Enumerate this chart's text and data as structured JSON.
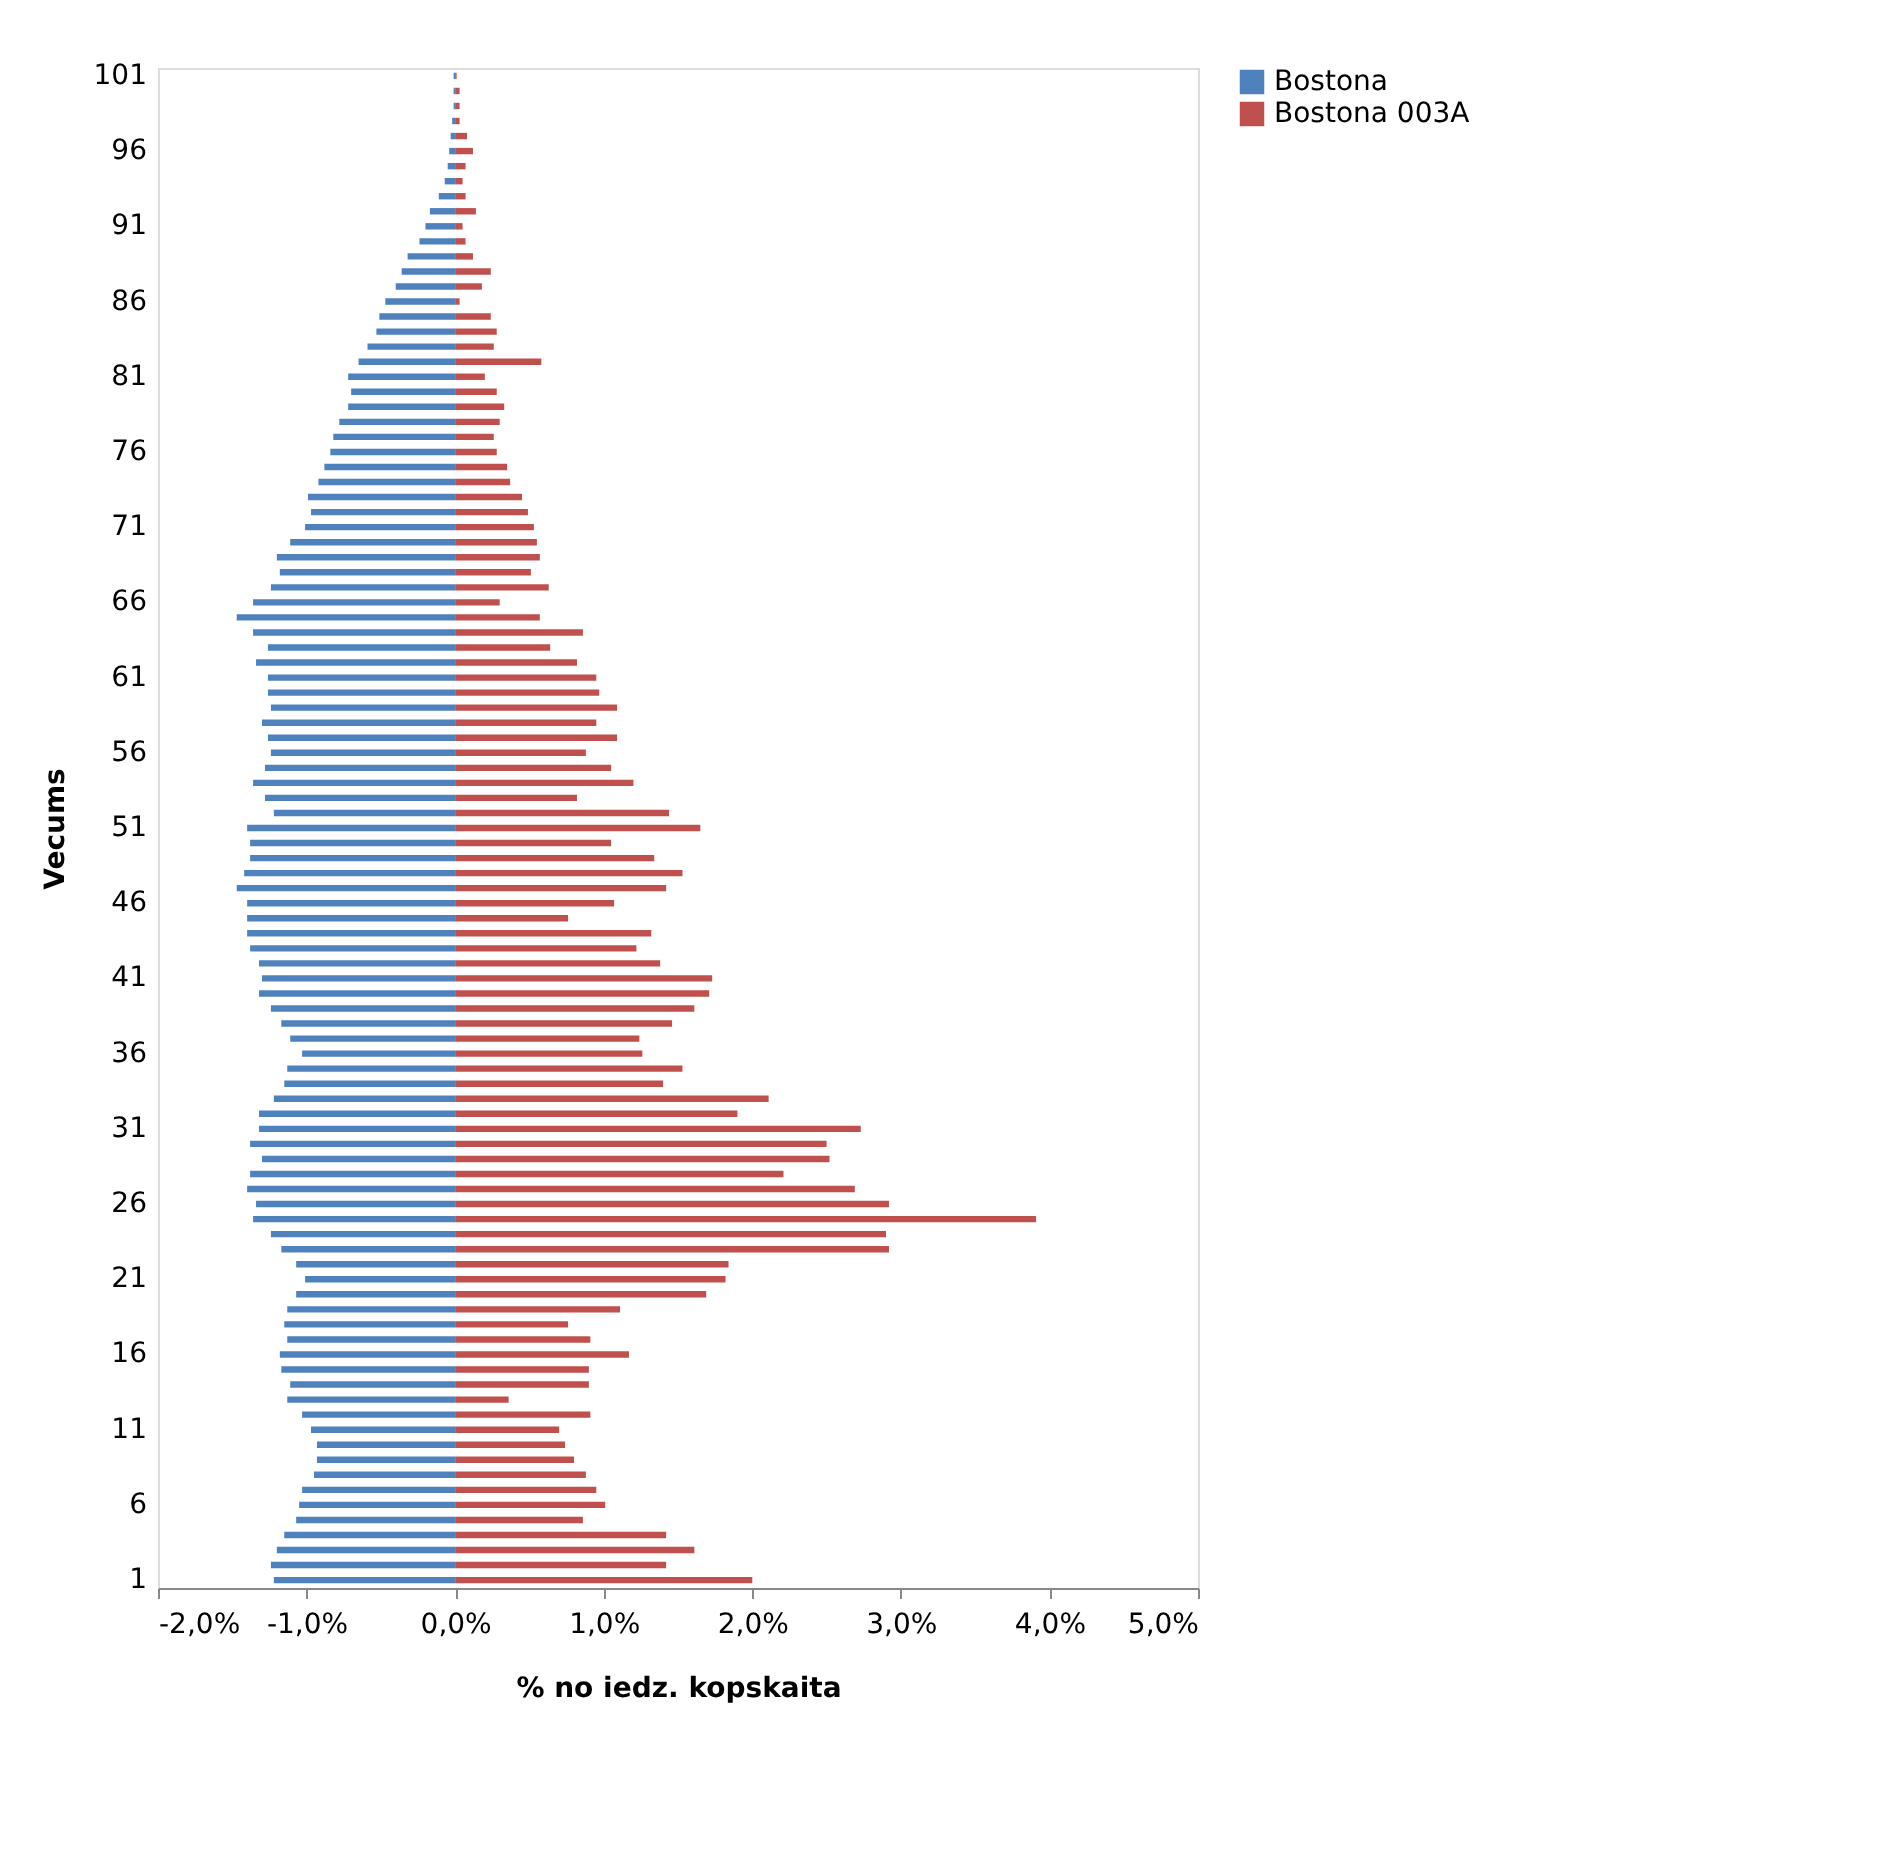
{
  "chart_data": {
    "type": "bar",
    "orientation": "horizontal",
    "xlabel": "% no iedz. kopskaita",
    "ylabel": "Vecums",
    "categories": [
      "101",
      null,
      null,
      null,
      null,
      "96",
      null,
      null,
      null,
      null,
      "91",
      null,
      null,
      null,
      null,
      "86",
      null,
      null,
      null,
      null,
      "81",
      null,
      null,
      null,
      null,
      "76",
      null,
      null,
      null,
      null,
      "71",
      null,
      null,
      null,
      null,
      "66",
      null,
      null,
      null,
      null,
      "61",
      null,
      null,
      null,
      null,
      "56",
      null,
      null,
      null,
      null,
      "51",
      null,
      null,
      null,
      null,
      "46",
      null,
      null,
      null,
      null,
      "41",
      null,
      null,
      null,
      null,
      "36",
      null,
      null,
      null,
      null,
      "31",
      null,
      null,
      null,
      null,
      "26",
      null,
      null,
      null,
      null,
      "21",
      null,
      null,
      null,
      null,
      "16",
      null,
      null,
      null,
      null,
      "11",
      null,
      null,
      null,
      null,
      "6",
      null,
      null,
      null,
      null,
      "1"
    ],
    "series": [
      {
        "name": "Bostona",
        "color": "#4f81bd",
        "values": [
          -0.01,
          -0.01,
          -0.01,
          -0.02,
          -0.03,
          -0.04,
          -0.05,
          -0.07,
          -0.11,
          -0.17,
          -0.2,
          -0.24,
          -0.32,
          -0.36,
          -0.4,
          -0.47,
          -0.51,
          -0.53,
          -0.59,
          -0.65,
          -0.72,
          -0.7,
          -0.72,
          -0.78,
          -0.82,
          -0.84,
          -0.88,
          -0.92,
          -0.99,
          -0.97,
          -1.01,
          -1.11,
          -1.2,
          -1.18,
          -1.24,
          -1.36,
          -1.47,
          -1.36,
          -1.26,
          -1.34,
          -1.26,
          -1.26,
          -1.24,
          -1.3,
          -1.26,
          -1.24,
          -1.28,
          -1.36,
          -1.28,
          -1.22,
          -1.4,
          -1.38,
          -1.38,
          -1.42,
          -1.47,
          -1.4,
          -1.4,
          -1.4,
          -1.38,
          -1.32,
          -1.3,
          -1.32,
          -1.24,
          -1.17,
          -1.11,
          -1.03,
          -1.13,
          -1.15,
          -1.22,
          -1.32,
          -1.32,
          -1.38,
          -1.3,
          -1.38,
          -1.4,
          -1.34,
          -1.36,
          -1.24,
          -1.17,
          -1.07,
          -1.01,
          -1.07,
          -1.13,
          -1.15,
          -1.13,
          -1.18,
          -1.17,
          -1.11,
          -1.13,
          -1.03,
          -0.97,
          -0.93,
          -0.93,
          -0.95,
          -1.03,
          -1.05,
          -1.07,
          -1.15,
          -1.2,
          -1.24,
          -1.22
        ]
      },
      {
        "name": "Bostona 003A",
        "color": "#c0504d",
        "values": [
          0.01,
          0.03,
          0.03,
          0.03,
          0.08,
          0.12,
          0.07,
          0.05,
          0.07,
          0.14,
          0.05,
          0.07,
          0.12,
          0.24,
          0.18,
          0.03,
          0.24,
          0.28,
          0.26,
          0.58,
          0.2,
          0.28,
          0.33,
          0.3,
          0.26,
          0.28,
          0.35,
          0.37,
          0.45,
          0.49,
          0.53,
          0.55,
          0.57,
          0.51,
          0.63,
          0.3,
          0.57,
          0.86,
          0.64,
          0.82,
          0.95,
          0.97,
          1.09,
          0.95,
          1.09,
          0.88,
          1.05,
          1.2,
          0.82,
          1.44,
          1.65,
          1.05,
          1.34,
          1.53,
          1.42,
          1.07,
          0.76,
          1.32,
          1.22,
          1.38,
          1.73,
          1.71,
          1.61,
          1.46,
          1.24,
          1.26,
          1.53,
          1.4,
          2.11,
          1.9,
          2.73,
          2.5,
          2.52,
          2.21,
          2.69,
          2.92,
          3.91,
          2.9,
          2.92,
          1.84,
          1.82,
          1.69,
          1.11,
          0.76,
          0.91,
          1.17,
          0.9,
          0.9,
          0.36,
          0.91,
          0.7,
          0.74,
          0.8,
          0.88,
          0.95,
          1.01,
          0.86,
          1.42,
          1.61,
          1.42,
          2.0
        ]
      }
    ],
    "xlim": [
      -2,
      5
    ],
    "xticks": [
      {
        "value": -2,
        "label": "-2,0%"
      },
      {
        "value": -1,
        "label": "-1,0%"
      },
      {
        "value": 0,
        "label": "0,0%"
      },
      {
        "value": 1,
        "label": "1,0%"
      },
      {
        "value": 2,
        "label": "2,0%"
      },
      {
        "value": 3,
        "label": "3,0%"
      },
      {
        "value": 4,
        "label": "4,0%"
      },
      {
        "value": 5,
        "label": "5,0%"
      }
    ],
    "grid": false,
    "legend": "right",
    "stacked": true
  }
}
